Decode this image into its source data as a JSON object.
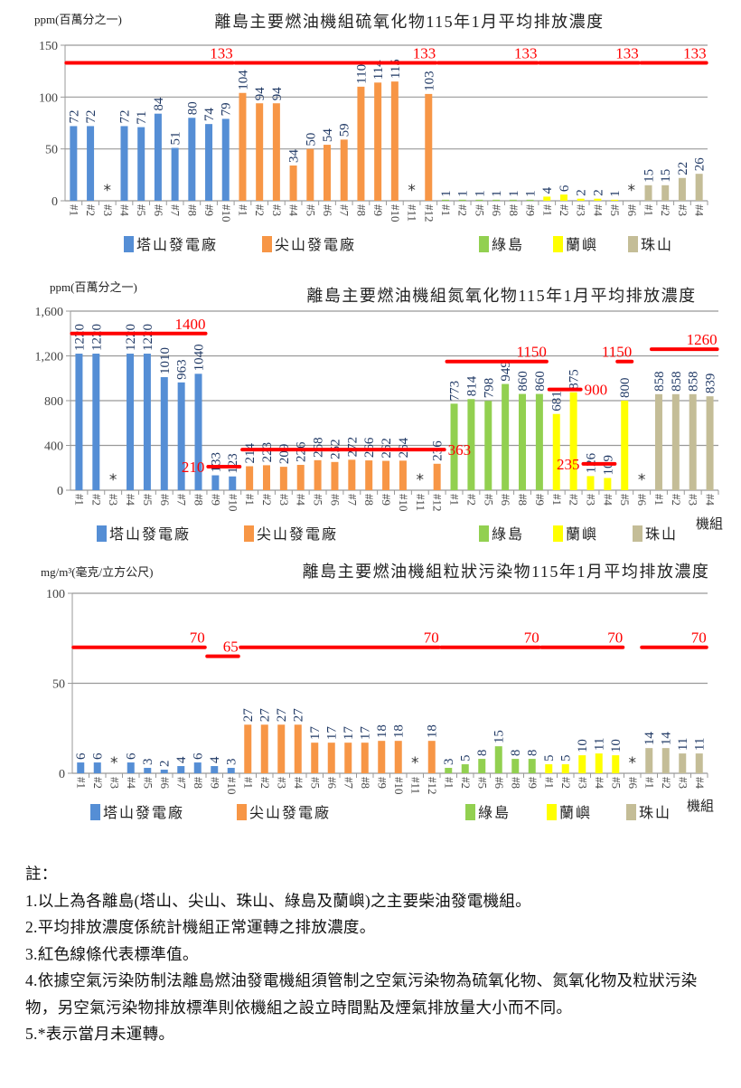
{
  "chart_data": [
    {
      "type": "bar",
      "title": "離島主要燃油機組硫氧化物115年1月平均排放濃度",
      "unit": "ppm(百萬分之一)",
      "xlabel": "",
      "ylim": [
        0,
        150
      ],
      "yticks": [
        0,
        50,
        100,
        150
      ],
      "ytick_labels": [
        "0",
        "50",
        "100",
        "150"
      ],
      "grid": true,
      "legend": "bottom",
      "not_operating_marker": "*",
      "groups": [
        {
          "name": "塔山發電廠",
          "color": "#558ED5",
          "units": [
            "#1",
            "#2",
            "#3",
            "#4",
            "#5",
            "#6",
            "#7",
            "#8",
            "#9",
            "#10"
          ],
          "values": [
            72,
            72,
            null,
            72,
            71,
            84,
            51,
            80,
            74,
            79
          ]
        },
        {
          "name": "尖山發電廠",
          "color": "#F79646",
          "units": [
            "#1",
            "#2",
            "#3",
            "#4",
            "#5",
            "#6",
            "#7",
            "#8",
            "#9",
            "#10",
            "#11",
            "#12"
          ],
          "values": [
            104,
            94,
            94,
            34,
            50,
            54,
            59,
            110,
            114,
            115,
            null,
            103
          ]
        },
        {
          "name": "綠島",
          "color": "#92D050",
          "units": [
            "#1",
            "#2",
            "#5",
            "#6",
            "#8",
            "#9"
          ],
          "values": [
            1,
            1,
            1,
            1,
            1,
            1
          ]
        },
        {
          "name": "蘭嶼",
          "color": "#FFFF00",
          "units": [
            "#1",
            "#2",
            "#3",
            "#4",
            "#5",
            "#6"
          ],
          "values": [
            4,
            6,
            2,
            2,
            1,
            null
          ]
        },
        {
          "name": "珠山",
          "color": "#C4BD97",
          "units": [
            "#1",
            "#2",
            "#3",
            "#4"
          ],
          "values": [
            15,
            15,
            22,
            26
          ]
        }
      ],
      "standards": [
        {
          "value": 133,
          "label": "133",
          "group": 0,
          "first": "#1",
          "last": "#10"
        },
        {
          "value": 133,
          "label": "133",
          "group": 1,
          "first": "#1",
          "last": "#12"
        },
        {
          "value": 133,
          "label": "133",
          "group": 2,
          "first": "#1",
          "last": "#9"
        },
        {
          "value": 133,
          "label": "133",
          "group": 3,
          "first": "#1",
          "last": "#6"
        },
        {
          "value": 133,
          "label": "133",
          "group": 4,
          "first": "#1",
          "last": "#4"
        }
      ],
      "standard_color": "#FF0000"
    },
    {
      "type": "bar",
      "title": "離島主要燃油機組氮氧化物115年1月平均排放濃度",
      "unit": "ppm(百萬分之一)",
      "xlabel": "機組",
      "ylim": [
        0,
        1600
      ],
      "yticks": [
        0,
        400,
        800,
        1200,
        1600
      ],
      "ytick_labels": [
        "0",
        "400",
        "800",
        "1,200",
        "1,600"
      ],
      "grid": true,
      "legend": "bottom",
      "not_operating_marker": "*",
      "groups": [
        {
          "name": "塔山發電廠",
          "color": "#558ED5",
          "units": [
            "#1",
            "#2",
            "#3",
            "#4",
            "#5",
            "#6",
            "#7",
            "#8",
            "#9",
            "#10"
          ],
          "values": [
            1220,
            1220,
            null,
            1220,
            1220,
            1010,
            963,
            1040,
            133,
            123
          ]
        },
        {
          "name": "尖山發電廠",
          "color": "#F79646",
          "units": [
            "#1",
            "#2",
            "#3",
            "#4",
            "#5",
            "#6",
            "#7",
            "#8",
            "#9",
            "#10",
            "#11",
            "#12"
          ],
          "values": [
            214,
            223,
            209,
            226,
            268,
            252,
            272,
            266,
            262,
            264,
            null,
            236
          ]
        },
        {
          "name": "綠島",
          "color": "#92D050",
          "units": [
            "#1",
            "#2",
            "#5",
            "#6",
            "#8",
            "#9"
          ],
          "values": [
            773,
            814,
            798,
            949,
            860,
            860
          ]
        },
        {
          "name": "蘭嶼",
          "color": "#FFFF00",
          "units": [
            "#1",
            "#2",
            "#3",
            "#4",
            "#5",
            "#6"
          ],
          "values": [
            681,
            875,
            126,
            109,
            800,
            null
          ]
        },
        {
          "name": "珠山",
          "color": "#C4BD97",
          "units": [
            "#1",
            "#2",
            "#3",
            "#4"
          ],
          "values": [
            858,
            858,
            858,
            839
          ]
        }
      ],
      "standards": [
        {
          "value": 1400,
          "label": "1400",
          "group": 0,
          "first": "#1",
          "last": "#8"
        },
        {
          "value": 210,
          "label": "210",
          "group": 0,
          "first": "#9",
          "last": "#10"
        },
        {
          "value": 363,
          "label": "363",
          "group": 1,
          "first": "#1",
          "last": "#12"
        },
        {
          "value": 1150,
          "label": "1150",
          "group": 2,
          "first": "#1",
          "last": "#9"
        },
        {
          "value": 900,
          "label": "900",
          "group": 3,
          "first": "#1",
          "last": "#2"
        },
        {
          "value": 235,
          "label": "235",
          "group": 3,
          "first": "#3",
          "last": "#4"
        },
        {
          "value": 1150,
          "label": "1150",
          "group": 3,
          "first": "#5",
          "last": "#5"
        },
        {
          "value": 1260,
          "label": "1260",
          "group": 4,
          "first": "#1",
          "last": "#4"
        }
      ],
      "standard_color": "#FF0000"
    },
    {
      "type": "bar",
      "title": "離島主要燃油機組粒狀污染物115年1月平均排放濃度",
      "unit": "mg/m³(毫克/立方公尺)",
      "xlabel": "機組",
      "ylim": [
        0,
        100
      ],
      "yticks": [
        0,
        50,
        100
      ],
      "ytick_labels": [
        "0",
        "50",
        "100"
      ],
      "grid": true,
      "legend": "bottom",
      "not_operating_marker": "*",
      "groups": [
        {
          "name": "塔山發電廠",
          "color": "#558ED5",
          "units": [
            "#1",
            "#2",
            "#3",
            "#4",
            "#5",
            "#6",
            "#7",
            "#8",
            "#9",
            "#10"
          ],
          "values": [
            6,
            6,
            null,
            6,
            3,
            2,
            4,
            6,
            4,
            3
          ]
        },
        {
          "name": "尖山發電廠",
          "color": "#F79646",
          "units": [
            "#1",
            "#2",
            "#3",
            "#4",
            "#5",
            "#6",
            "#7",
            "#8",
            "#9",
            "#10",
            "#11",
            "#12"
          ],
          "values": [
            27,
            27,
            27,
            27,
            17,
            17,
            17,
            17,
            18,
            18,
            null,
            18
          ]
        },
        {
          "name": "綠島",
          "color": "#92D050",
          "units": [
            "#1",
            "#2",
            "#5",
            "#6",
            "#8",
            "#9"
          ],
          "values": [
            3,
            5,
            8,
            15,
            8,
            8
          ]
        },
        {
          "name": "蘭嶼",
          "color": "#FFFF00",
          "units": [
            "#1",
            "#2",
            "#3",
            "#4",
            "#5",
            "#6"
          ],
          "values": [
            5,
            5,
            10,
            11,
            10,
            null
          ]
        },
        {
          "name": "珠山",
          "color": "#C4BD97",
          "units": [
            "#1",
            "#2",
            "#3",
            "#4"
          ],
          "values": [
            14,
            14,
            11,
            11
          ]
        }
      ],
      "standards": [
        {
          "value": 70,
          "label": "70",
          "group": 0,
          "first": "#1",
          "last": "#8"
        },
        {
          "value": 65,
          "label": "65",
          "group": 0,
          "first": "#9",
          "last": "#10"
        },
        {
          "value": 70,
          "label": "70",
          "group": 1,
          "first": "#1",
          "last": "#12"
        },
        {
          "value": 70,
          "label": "70",
          "group": 2,
          "first": "#1",
          "last": "#9"
        },
        {
          "value": 70,
          "label": "70",
          "group": 3,
          "first": "#1",
          "last": "#5"
        },
        {
          "value": 70,
          "label": "70",
          "group": 3,
          "first": "#6",
          "last": "#6",
          "extends_to_group": 4
        },
        {
          "value": 70,
          "label": "70",
          "group": 4,
          "first": "#1",
          "last": "#4"
        }
      ],
      "standard_color": "#FF0000"
    }
  ],
  "notes": {
    "heading": "註：",
    "items": [
      "1.以上為各離島(塔山、尖山、珠山、綠島及蘭嶼)之主要柴油發電機組。",
      "2.平均排放濃度係統計機組正常運轉之排放濃度。",
      "3.紅色線條代表標準值。",
      "4.依據空氣污染防制法離島燃油發電機組須管制之空氣污染物為硫氧化物、氮氧化物及粒狀污染物，另空氣污染物排放標準則依機組之設立時間點及煙氣排放量大小而不同。",
      "5.*表示當月未運轉。"
    ]
  }
}
